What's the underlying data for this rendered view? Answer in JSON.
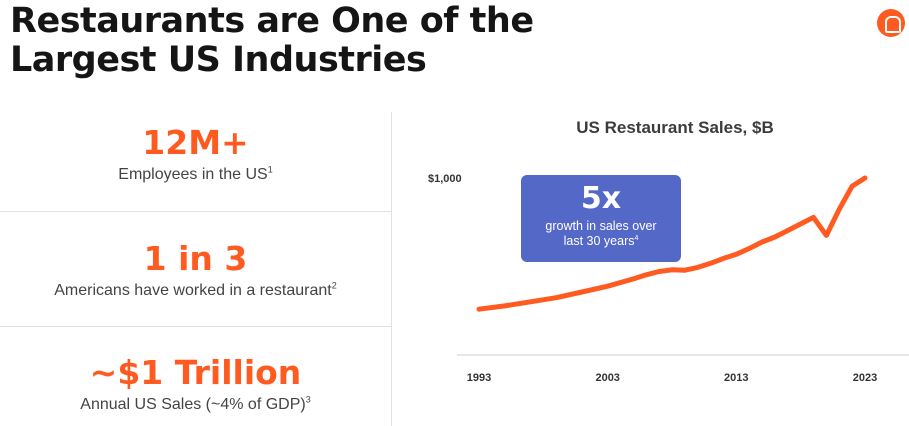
{
  "header": {
    "title_line1": "Restaurants are One of the",
    "title_line2": "Largest US Industries",
    "logo_icon": "orange-circle-logo-icon",
    "accent_color": "#ff5a1f"
  },
  "stats": [
    {
      "value": "12M+",
      "label": "Employees in the US",
      "footnote": "1"
    },
    {
      "value": "1 in 3",
      "label": "Americans have worked in a restaurant",
      "footnote": "2"
    },
    {
      "value": "~$1 Trillion",
      "label": "Annual US Sales (~4% of GDP)",
      "footnote": "3"
    }
  ],
  "callout": {
    "value": "5x",
    "text": "growth in sales over last 30 years",
    "footnote": "4",
    "color": "#5468c8"
  },
  "chart_data": {
    "type": "line",
    "title": "US Restaurant Sales, $B",
    "xlabel": "",
    "ylabel": "",
    "y_tick_label": "$1,000",
    "y_tick_value": 1000,
    "x_ticks": [
      1993,
      2003,
      2013,
      2023
    ],
    "xlim": [
      1993,
      2023
    ],
    "ylim": [
      0,
      1000
    ],
    "grid": false,
    "line_color": "#ff5a1f",
    "series": [
      {
        "x": [
          1993,
          1995,
          1997,
          1999,
          2001,
          2003,
          2005,
          2006,
          2007,
          2008,
          2009,
          2010,
          2011,
          2012,
          2013,
          2014,
          2015,
          2016,
          2017,
          2018,
          2019,
          2020,
          2021,
          2022,
          2023
        ],
        "values": [
          200,
          220,
          245,
          270,
          305,
          340,
          385,
          410,
          430,
          440,
          438,
          455,
          480,
          510,
          535,
          570,
          610,
          640,
          680,
          720,
          760,
          650,
          810,
          950,
          1000
        ]
      }
    ]
  }
}
